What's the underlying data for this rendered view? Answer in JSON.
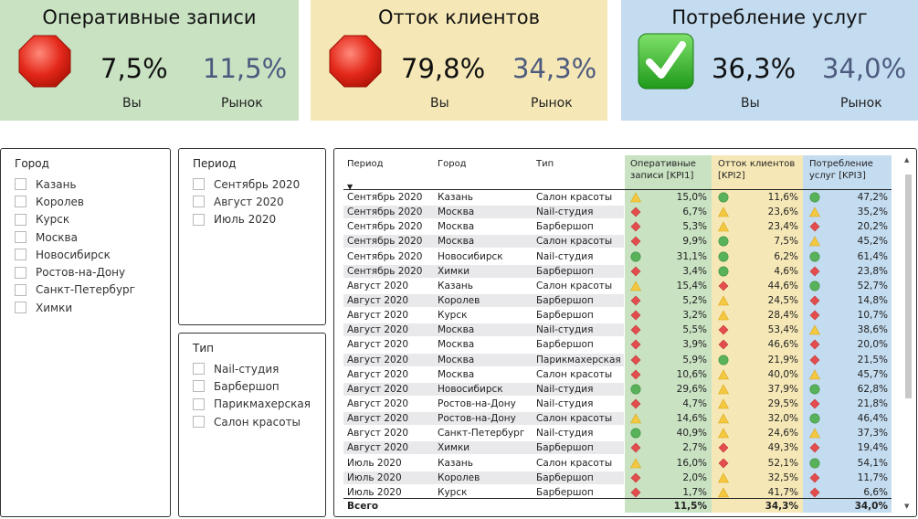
{
  "colors": {
    "kpi1_bg": "#c9e2c2",
    "kpi2_bg": "#f6e8b6",
    "kpi3_bg": "#c4dcf0",
    "status_red": "#e34d4d",
    "status_green": "#58b25a",
    "status_amber": "#f5c842",
    "market_text": "#4c5a7e"
  },
  "kpis": [
    {
      "title": "Оперативные записи",
      "icon": "stop-sign-icon",
      "you": "7,5%",
      "market": "11,5%",
      "you_label": "Вы",
      "market_label": "Рынок"
    },
    {
      "title": "Отток клиентов",
      "icon": "stop-sign-icon",
      "you": "79,8%",
      "market": "34,3%",
      "you_label": "Вы",
      "market_label": "Рынок"
    },
    {
      "title": "Потребление услуг",
      "icon": "check-mark-icon",
      "you": "36,3%",
      "market": "34,0%",
      "you_label": "Вы",
      "market_label": "Рынок"
    }
  ],
  "slicers": {
    "city": {
      "title": "Город",
      "items": [
        "Казань",
        "Королев",
        "Курск",
        "Москва",
        "Новосибирск",
        "Ростов-на-Дону",
        "Санкт-Петербург",
        "Химки"
      ]
    },
    "period": {
      "title": "Период",
      "items": [
        "Сентябрь 2020",
        "Август 2020",
        "Июль 2020"
      ]
    },
    "type": {
      "title": "Тип",
      "items": [
        "Nail-студия",
        "Барбершоп",
        "Парикмахерская",
        "Салон красоты"
      ]
    }
  },
  "table": {
    "headers": {
      "period": "Период",
      "city": "Город",
      "type": "Тип",
      "kpi1": "Оперативные записи [KPI1]",
      "kpi2": "Отток клиентов [KPI2]",
      "kpi3": "Потребление услуг [KPI3]"
    },
    "rows": [
      {
        "period": "Сентябрь 2020",
        "city": "Казань",
        "type": "Салон красоты",
        "k1": "15,0%",
        "s1": "amber",
        "k2": "11,6%",
        "s2": "green",
        "k3": "47,2%",
        "s3": "green"
      },
      {
        "period": "Сентябрь 2020",
        "city": "Москва",
        "type": "Nail-студия",
        "k1": "6,7%",
        "s1": "red",
        "k2": "23,6%",
        "s2": "amber",
        "k3": "35,2%",
        "s3": "amber"
      },
      {
        "period": "Сентябрь 2020",
        "city": "Москва",
        "type": "Барбершоп",
        "k1": "5,3%",
        "s1": "red",
        "k2": "23,4%",
        "s2": "amber",
        "k3": "20,2%",
        "s3": "red"
      },
      {
        "period": "Сентябрь 2020",
        "city": "Москва",
        "type": "Салон красоты",
        "k1": "9,9%",
        "s1": "red",
        "k2": "7,5%",
        "s2": "green",
        "k3": "45,2%",
        "s3": "amber"
      },
      {
        "period": "Сентябрь 2020",
        "city": "Новосибирск",
        "type": "Nail-студия",
        "k1": "31,1%",
        "s1": "green",
        "k2": "6,2%",
        "s2": "green",
        "k3": "61,4%",
        "s3": "green"
      },
      {
        "period": "Сентябрь 2020",
        "city": "Химки",
        "type": "Барбершоп",
        "k1": "3,4%",
        "s1": "red",
        "k2": "4,6%",
        "s2": "green",
        "k3": "23,8%",
        "s3": "red"
      },
      {
        "period": "Август 2020",
        "city": "Казань",
        "type": "Салон красоты",
        "k1": "15,4%",
        "s1": "amber",
        "k2": "44,6%",
        "s2": "red",
        "k3": "52,7%",
        "s3": "green"
      },
      {
        "period": "Август 2020",
        "city": "Королев",
        "type": "Барбершоп",
        "k1": "5,2%",
        "s1": "red",
        "k2": "24,5%",
        "s2": "amber",
        "k3": "14,8%",
        "s3": "red"
      },
      {
        "period": "Август 2020",
        "city": "Курск",
        "type": "Барбершоп",
        "k1": "3,2%",
        "s1": "red",
        "k2": "28,4%",
        "s2": "amber",
        "k3": "10,7%",
        "s3": "red"
      },
      {
        "period": "Август 2020",
        "city": "Москва",
        "type": "Nail-студия",
        "k1": "5,5%",
        "s1": "red",
        "k2": "53,4%",
        "s2": "red",
        "k3": "38,6%",
        "s3": "amber"
      },
      {
        "period": "Август 2020",
        "city": "Москва",
        "type": "Барбершоп",
        "k1": "3,9%",
        "s1": "red",
        "k2": "46,6%",
        "s2": "red",
        "k3": "20,0%",
        "s3": "red"
      },
      {
        "period": "Август 2020",
        "city": "Москва",
        "type": "Парикмахерская",
        "k1": "5,9%",
        "s1": "red",
        "k2": "21,9%",
        "s2": "green",
        "k3": "21,5%",
        "s3": "red"
      },
      {
        "period": "Август 2020",
        "city": "Москва",
        "type": "Салон красоты",
        "k1": "10,6%",
        "s1": "red",
        "k2": "40,0%",
        "s2": "amber",
        "k3": "45,7%",
        "s3": "amber"
      },
      {
        "period": "Август 2020",
        "city": "Новосибирск",
        "type": "Nail-студия",
        "k1": "29,6%",
        "s1": "green",
        "k2": "37,9%",
        "s2": "amber",
        "k3": "62,8%",
        "s3": "green"
      },
      {
        "period": "Август 2020",
        "city": "Ростов-на-Дону",
        "type": "Nail-студия",
        "k1": "4,7%",
        "s1": "red",
        "k2": "29,5%",
        "s2": "amber",
        "k3": "21,8%",
        "s3": "red"
      },
      {
        "period": "Август 2020",
        "city": "Ростов-на-Дону",
        "type": "Салон красоты",
        "k1": "14,6%",
        "s1": "amber",
        "k2": "32,0%",
        "s2": "amber",
        "k3": "46,4%",
        "s3": "green"
      },
      {
        "period": "Август 2020",
        "city": "Санкт-Петербург",
        "type": "Nail-студия",
        "k1": "40,9%",
        "s1": "green",
        "k2": "24,6%",
        "s2": "amber",
        "k3": "37,3%",
        "s3": "amber"
      },
      {
        "period": "Август 2020",
        "city": "Химки",
        "type": "Барбершоп",
        "k1": "2,7%",
        "s1": "red",
        "k2": "49,3%",
        "s2": "red",
        "k3": "19,4%",
        "s3": "red"
      },
      {
        "period": "Июль 2020",
        "city": "Казань",
        "type": "Салон красоты",
        "k1": "16,0%",
        "s1": "amber",
        "k2": "52,1%",
        "s2": "red",
        "k3": "54,1%",
        "s3": "green"
      },
      {
        "period": "Июль 2020",
        "city": "Королев",
        "type": "Барбершоп",
        "k1": "2,0%",
        "s1": "red",
        "k2": "32,5%",
        "s2": "amber",
        "k3": "11,7%",
        "s3": "red"
      },
      {
        "period": "Июль 2020",
        "city": "Курск",
        "type": "Барбершоп",
        "k1": "1,7%",
        "s1": "red",
        "k2": "41,7%",
        "s2": "amber",
        "k3": "6,6%",
        "s3": "red"
      }
    ],
    "total": {
      "label": "Всего",
      "k1": "11,5%",
      "k2": "34,3%",
      "k3": "34,0%"
    }
  }
}
